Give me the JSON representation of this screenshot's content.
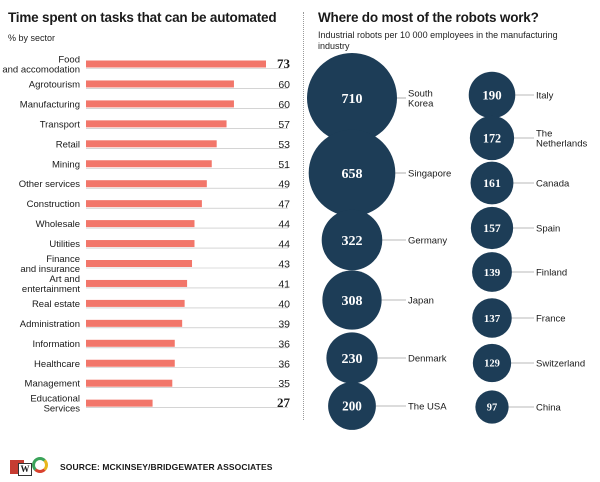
{
  "left": {
    "title": "Time spent on tasks that can be automated",
    "subtitle": "% by sector"
  },
  "right": {
    "title": "Where do most of the robots work?",
    "subtitle": "Industrial robots per 10 000 employees in the manufacturing industry"
  },
  "footer": {
    "source": "SOURCE: MCKINSEY/BRIDGEWATER ASSOCIATES",
    "logo_letter": "W"
  },
  "colors": {
    "bar": "#f2766a",
    "bubble": "#1d3d57",
    "axis": "#bbbbbb"
  },
  "chart_data": [
    {
      "type": "bar",
      "orientation": "horizontal",
      "title": "Time spent on tasks that can be automated",
      "subtitle": "% by sector",
      "categories": [
        [
          "Food",
          "and accomodation"
        ],
        [
          "Agrotourism"
        ],
        [
          "Manufacturing"
        ],
        [
          "Transport"
        ],
        [
          "Retail"
        ],
        [
          "Mining"
        ],
        [
          "Other services"
        ],
        [
          "Construction"
        ],
        [
          "Wholesale"
        ],
        [
          "Utilities"
        ],
        [
          "Finance",
          "and insurance"
        ],
        [
          "Art and",
          "entertainment"
        ],
        [
          "Real estate"
        ],
        [
          "Administration"
        ],
        [
          "Information"
        ],
        [
          "Healthcare"
        ],
        [
          "Management"
        ],
        [
          "Educational",
          "Services"
        ]
      ],
      "values": [
        73,
        60,
        60,
        57,
        53,
        51,
        49,
        47,
        44,
        44,
        43,
        41,
        40,
        39,
        36,
        36,
        35,
        27
      ],
      "highlighted": [
        0,
        17
      ],
      "xlim": [
        0,
        73
      ]
    },
    {
      "type": "bubble",
      "title": "Where do most of the robots work?",
      "subtitle": "Industrial robots per 10 000 employees in the manufacturing industry",
      "columns": [
        [
          {
            "label": [
              "South",
              "Korea"
            ],
            "value": 710
          },
          {
            "label": [
              "Singapore"
            ],
            "value": 658
          },
          {
            "label": [
              "Germany"
            ],
            "value": 322
          },
          {
            "label": [
              "Japan"
            ],
            "value": 308
          },
          {
            "label": [
              "Denmark"
            ],
            "value": 230
          },
          {
            "label": [
              "The USA"
            ],
            "value": 200
          }
        ],
        [
          {
            "label": [
              "Italy"
            ],
            "value": 190
          },
          {
            "label": [
              "The",
              "Netherlands"
            ],
            "value": 172
          },
          {
            "label": [
              "Canada"
            ],
            "value": 161
          },
          {
            "label": [
              "Spain"
            ],
            "value": 157
          },
          {
            "label": [
              "Finland"
            ],
            "value": 139
          },
          {
            "label": [
              "France"
            ],
            "value": 137
          },
          {
            "label": [
              "Switzerland"
            ],
            "value": 129
          },
          {
            "label": [
              "China"
            ],
            "value": 97
          }
        ]
      ]
    }
  ]
}
